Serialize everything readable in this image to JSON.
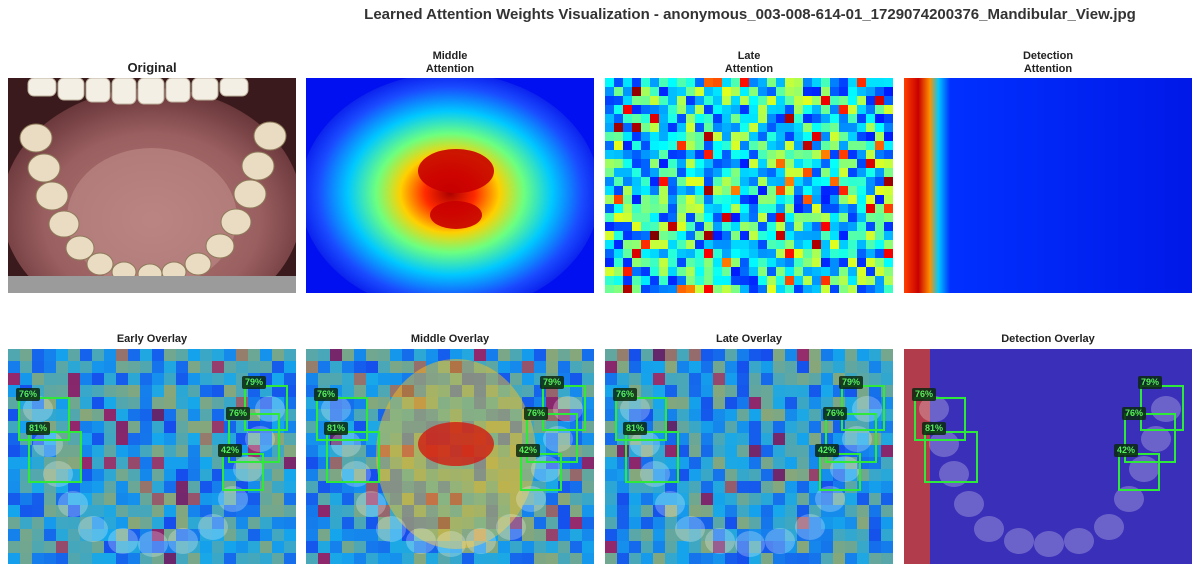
{
  "title": "Learned Attention Weights Visualization - anonymous_003-008-614-01_1729074200376_Mandibular_View.jpg",
  "panels_top": [
    {
      "title": "Original"
    },
    {
      "title": "Middle\nAttention"
    },
    {
      "title": "Late\nAttention"
    },
    {
      "title": "Detection\nAttention"
    }
  ],
  "panels_bottom": [
    {
      "title": "Early Overlay"
    },
    {
      "title": "Middle Overlay"
    },
    {
      "title": "Late Overlay"
    },
    {
      "title": "Detection Overlay"
    }
  ],
  "detections": [
    {
      "label": "76%"
    },
    {
      "label": "81%"
    },
    {
      "label": "79%"
    },
    {
      "label": "76%"
    },
    {
      "label": "42%"
    }
  ],
  "colors": {
    "box": "#2ee83a",
    "heat_low": "#0000ff",
    "heat_high": "#aa0000"
  }
}
